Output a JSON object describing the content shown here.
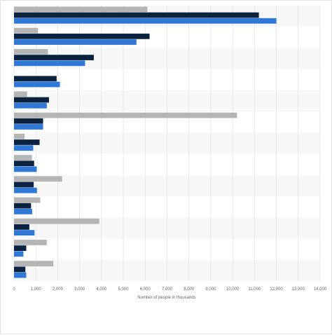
{
  "chart_data": {
    "type": "bar",
    "orientation": "horizontal",
    "xlabel": "Number of people in thousands",
    "xlim": [
      0,
      14000
    ],
    "xticks": [
      0,
      1000,
      2000,
      3000,
      4000,
      5000,
      6000,
      7000,
      8000,
      9000,
      10000,
      11000,
      12000,
      13000,
      14000
    ],
    "xtick_labels": [
      "0",
      "1,000",
      "2,000",
      "3,000",
      "4,000",
      "5,000",
      "6,000",
      "7,000",
      "8,000",
      "9,000",
      "10,000",
      "11,000",
      "12,000",
      "13,000",
      "14,000"
    ],
    "grid": true,
    "legend": "none",
    "categories": [
      "",
      "",
      "",
      "",
      "",
      "",
      "",
      "",
      "",
      "",
      "",
      "",
      ""
    ],
    "series": [
      {
        "color": "#b5b5b5",
        "values": [
          6100,
          1100,
          1550,
          null,
          600,
          10200,
          480,
          820,
          2200,
          1200,
          3900,
          1500,
          1800
        ]
      },
      {
        "color": "#0b2340",
        "values": [
          11200,
          6200,
          3650,
          1950,
          1600,
          1330,
          1170,
          920,
          900,
          780,
          700,
          560,
          520
        ]
      },
      {
        "color": "#2f78d6",
        "values": [
          12000,
          5600,
          3250,
          2100,
          1500,
          1330,
          880,
          1040,
          1050,
          830,
          940,
          430,
          560
        ]
      }
    ]
  }
}
